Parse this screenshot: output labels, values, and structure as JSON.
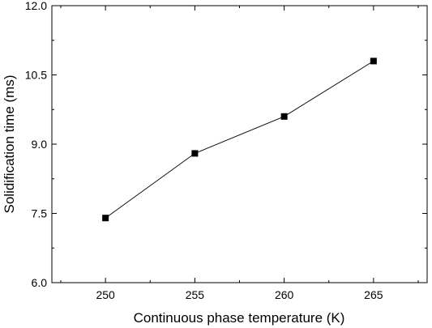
{
  "chart_data": {
    "type": "line",
    "xlabel": "Continuous phase temperature (K)",
    "ylabel": "Solidification time (ms)",
    "xlim": [
      247,
      268
    ],
    "ylim": [
      6.0,
      12.0
    ],
    "xticks": [
      250,
      255,
      260,
      265
    ],
    "xtick_labels": [
      "250",
      "255",
      "260",
      "265"
    ],
    "yticks": [
      6.0,
      7.5,
      9.0,
      10.5,
      12.0
    ],
    "ytick_labels": [
      "6.0",
      "7.5",
      "9.0",
      "10.5",
      "12.0"
    ],
    "grid": false,
    "marker": "square",
    "series": [
      {
        "x": [
          250,
          255,
          260,
          265
        ],
        "y": [
          7.4,
          8.8,
          9.6,
          10.8
        ]
      }
    ]
  }
}
